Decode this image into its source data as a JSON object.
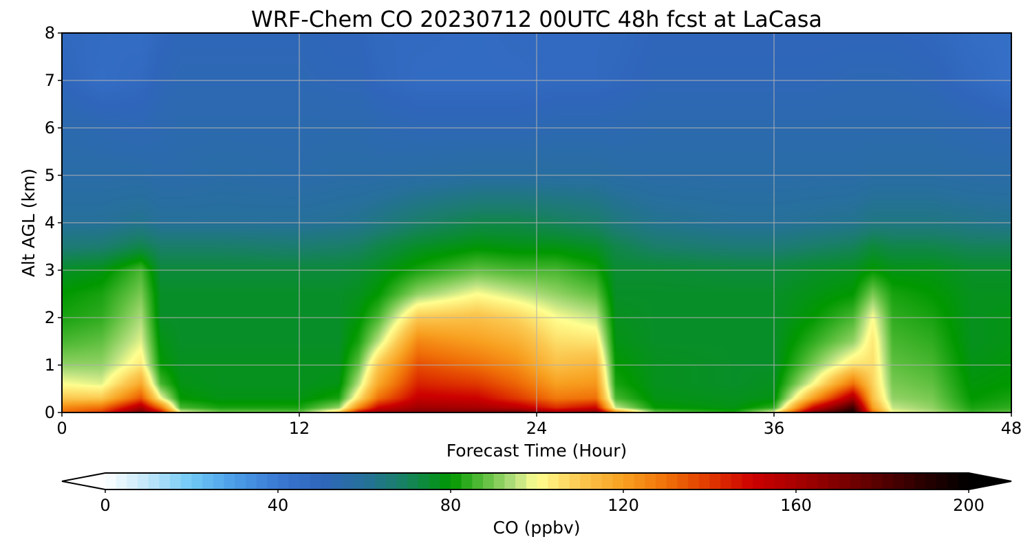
{
  "chart_data": {
    "type": "heatmap",
    "title": "WRF-Chem CO  20230712 00UTC 48h fcst at LaCasa",
    "xlabel": "Forecast Time (Hour)",
    "ylabel": "Alt AGL (km)",
    "xlim": [
      0,
      48
    ],
    "ylim": [
      0,
      8
    ],
    "x_ticks": [
      0,
      12,
      24,
      36,
      48
    ],
    "y_ticks": [
      0,
      1,
      2,
      3,
      4,
      5,
      6,
      7,
      8
    ],
    "grid": true,
    "x": [
      0,
      2,
      4,
      5,
      6,
      8,
      12,
      14,
      15,
      16,
      18,
      21,
      23,
      25,
      27,
      28,
      30,
      34,
      36,
      38,
      40,
      41,
      42,
      44,
      46,
      48
    ],
    "z_levels": [
      0,
      0.1,
      0.3,
      0.6,
      1,
      1.5,
      2,
      2.5,
      3,
      3.5,
      4,
      5,
      6,
      7,
      8
    ],
    "values": [
      [
        130,
        125,
        110,
        100,
        92,
        86,
        82,
        80,
        76,
        66,
        60,
        56,
        54,
        50,
        48
      ],
      [
        140,
        130,
        110,
        98,
        92,
        88,
        84,
        82,
        78,
        67,
        60,
        56,
        53,
        46,
        47
      ],
      [
        175,
        160,
        135,
        118,
        104,
        98,
        94,
        90,
        86,
        72,
        62,
        56,
        52,
        48,
        46
      ],
      [
        150,
        130,
        100,
        86,
        80,
        78,
        76,
        76,
        74,
        68,
        60,
        55,
        53,
        51,
        49
      ],
      [
        100,
        86,
        80,
        78,
        77,
        76,
        76,
        76,
        74,
        68,
        60,
        55,
        54,
        52,
        51
      ],
      [
        90,
        82,
        78,
        77,
        77,
        76,
        76,
        76,
        74,
        68,
        60,
        56,
        54,
        52,
        51
      ],
      [
        88,
        82,
        78,
        77,
        77,
        76,
        76,
        76,
        74,
        67,
        60,
        55,
        54,
        52,
        51
      ],
      [
        110,
        92,
        82,
        78,
        77,
        76,
        76,
        76,
        74,
        68,
        61,
        56,
        54,
        51,
        50
      ],
      [
        150,
        125,
        105,
        95,
        88,
        82,
        79,
        77,
        75,
        69,
        62,
        56,
        54,
        51,
        50
      ],
      [
        165,
        150,
        130,
        118,
        110,
        95,
        86,
        80,
        77,
        72,
        64,
        56,
        53,
        49,
        48
      ],
      [
        170,
        162,
        152,
        144,
        136,
        125,
        110,
        92,
        82,
        76,
        68,
        57,
        52,
        47,
        48
      ],
      [
        172,
        160,
        150,
        140,
        130,
        120,
        112,
        100,
        88,
        79,
        72,
        58,
        52,
        47,
        47
      ],
      [
        175,
        155,
        140,
        132,
        124,
        116,
        108,
        96,
        86,
        78,
        72,
        58,
        52,
        47,
        48
      ],
      [
        160,
        142,
        128,
        120,
        112,
        106,
        100,
        92,
        86,
        78,
        70,
        58,
        53,
        48,
        48
      ],
      [
        170,
        150,
        130,
        122,
        115,
        105,
        96,
        88,
        82,
        76,
        68,
        58,
        53,
        48,
        48
      ],
      [
        125,
        96,
        86,
        82,
        80,
        78,
        77,
        76,
        75,
        72,
        65,
        57,
        53,
        49,
        48
      ],
      [
        90,
        80,
        78,
        77,
        77,
        76,
        76,
        76,
        75,
        68,
        62,
        56,
        54,
        51,
        50
      ],
      [
        82,
        78,
        77,
        76,
        76,
        76,
        76,
        76,
        74,
        66,
        60,
        56,
        54,
        51,
        50
      ],
      [
        100,
        84,
        78,
        77,
        76,
        76,
        76,
        76,
        74,
        66,
        60,
        56,
        54,
        51,
        50
      ],
      [
        170,
        150,
        120,
        100,
        90,
        84,
        80,
        78,
        76,
        68,
        61,
        56,
        54,
        51,
        50
      ],
      [
        195,
        185,
        160,
        130,
        105,
        92,
        86,
        80,
        77,
        70,
        62,
        56,
        54,
        52,
        50
      ],
      [
        130,
        120,
        112,
        108,
        106,
        104,
        100,
        90,
        80,
        74,
        64,
        57,
        54,
        52,
        50
      ],
      [
        100,
        96,
        92,
        90,
        88,
        86,
        84,
        82,
        78,
        72,
        64,
        57,
        54,
        52,
        50
      ],
      [
        95,
        92,
        90,
        88,
        86,
        84,
        82,
        80,
        78,
        72,
        64,
        57,
        54,
        51,
        49
      ],
      [
        85,
        82,
        80,
        79,
        78,
        77,
        77,
        77,
        76,
        70,
        63,
        56,
        53,
        48,
        46
      ],
      [
        88,
        84,
        82,
        80,
        79,
        78,
        78,
        77,
        76,
        70,
        62,
        56,
        52,
        45,
        45
      ]
    ],
    "colorbar": {
      "label": "CO  (ppbv)",
      "min": 0,
      "max": 200,
      "ticks": [
        0,
        40,
        80,
        120,
        160,
        200
      ],
      "extend": "both",
      "colormap": [
        [
          0,
          "#ffffff"
        ],
        [
          10,
          "#bfe6f8"
        ],
        [
          20,
          "#6ec8f4"
        ],
        [
          30,
          "#4a9de8"
        ],
        [
          40,
          "#3a78d2"
        ],
        [
          50,
          "#2f66bb"
        ],
        [
          60,
          "#26709a"
        ],
        [
          68,
          "#1a7e6a"
        ],
        [
          75,
          "#0a8c32"
        ],
        [
          80,
          "#009800"
        ],
        [
          88,
          "#60c040"
        ],
        [
          95,
          "#b8e080"
        ],
        [
          100,
          "#ffff90"
        ],
        [
          110,
          "#fbc850"
        ],
        [
          120,
          "#f8a020"
        ],
        [
          130,
          "#f07008"
        ],
        [
          140,
          "#e03800"
        ],
        [
          150,
          "#cc0000"
        ],
        [
          160,
          "#a80000"
        ],
        [
          175,
          "#6a0000"
        ],
        [
          188,
          "#300000"
        ],
        [
          200,
          "#000000"
        ]
      ]
    }
  }
}
